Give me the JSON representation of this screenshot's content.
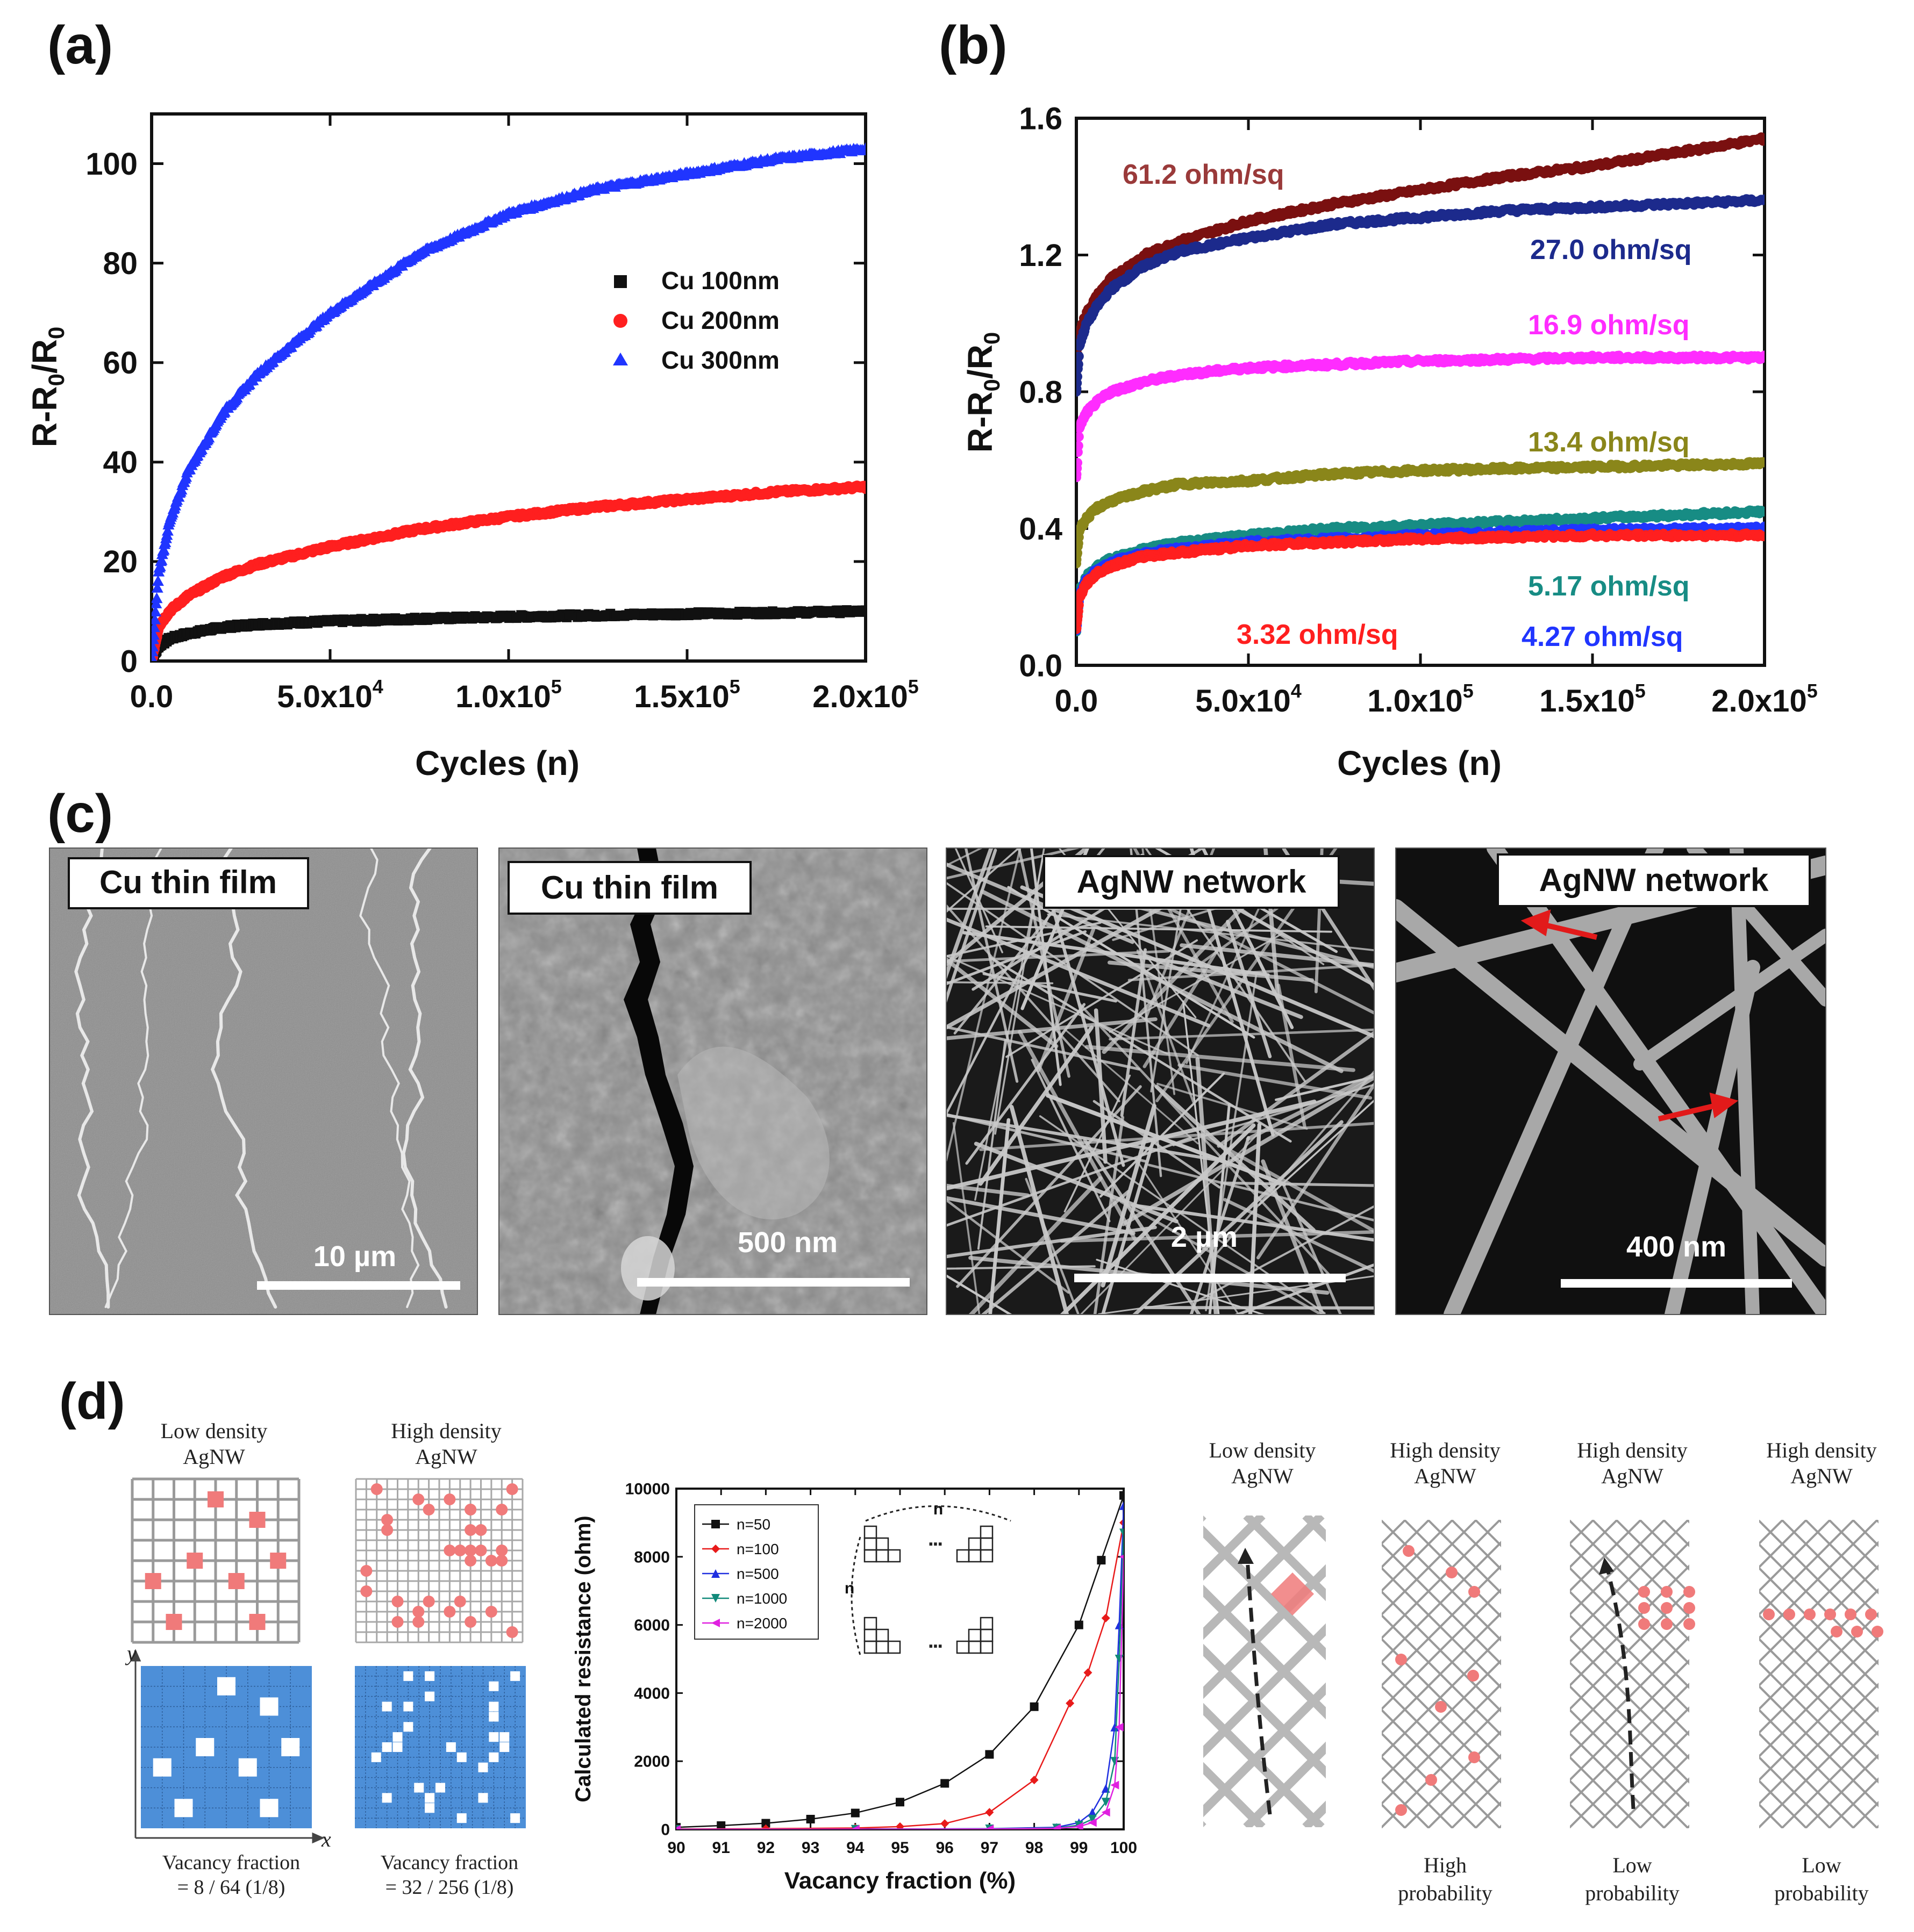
{
  "panels": {
    "a": "(a)",
    "b": "(b)",
    "c": "(c)",
    "d": "(d)"
  },
  "colors": {
    "black": "#111111",
    "red": "#ff1f1f",
    "blue": "#2035ff",
    "darkred": "#7a1010",
    "navy": "#1c2a8c",
    "magenta": "#ff2cff",
    "olive": "#8a861a",
    "teal": "#178c84",
    "sem_gray": "#8a8a8a",
    "grid_blue": "#4d8fd8",
    "vacancy_red": "#f07a7a"
  },
  "chart_data": [
    {
      "id": "a",
      "type": "scatter",
      "xlabel": "Cycles (n)",
      "ylabel": "R-R0/R0",
      "xlim": [
        0,
        200000
      ],
      "ylim": [
        0,
        110
      ],
      "xticks": [
        "0.0",
        "5.0x10",
        "1.0x10",
        "1.5x10",
        "2.0x10"
      ],
      "xtick_exp": [
        "",
        "4",
        "5",
        "5",
        "5"
      ],
      "xtick_values": [
        0,
        50000,
        100000,
        150000,
        200000
      ],
      "yticks": [
        "0",
        "20",
        "40",
        "60",
        "80",
        "100"
      ],
      "ytick_values": [
        0,
        20,
        40,
        60,
        80,
        100
      ],
      "legend": [
        "Cu 100nm",
        "Cu 200nm",
        "Cu 300nm"
      ],
      "legend_position": "right",
      "series": [
        {
          "name": "Cu 100nm",
          "marker": "square",
          "color": "#111111",
          "x": [
            0,
            2000,
            5000,
            10000,
            20000,
            30000,
            50000,
            75000,
            100000,
            125000,
            150000,
            175000,
            200000
          ],
          "y": [
            0,
            3,
            4.5,
            5.5,
            6.8,
            7.4,
            8.0,
            8.5,
            8.9,
            9.2,
            9.5,
            9.7,
            10
          ]
        },
        {
          "name": "Cu 200nm",
          "marker": "circle",
          "color": "#ff1f1f",
          "x": [
            0,
            2000,
            5000,
            10000,
            20000,
            30000,
            50000,
            75000,
            100000,
            125000,
            150000,
            175000,
            200000
          ],
          "y": [
            0,
            7,
            10,
            13,
            17,
            19.5,
            23,
            26.5,
            29,
            31,
            32.5,
            34,
            35
          ]
        },
        {
          "name": "Cu 300nm",
          "marker": "triangle",
          "color": "#2035ff",
          "x": [
            0,
            2000,
            5000,
            10000,
            20000,
            30000,
            50000,
            75000,
            100000,
            125000,
            150000,
            175000,
            200000
          ],
          "y": [
            0,
            18,
            28,
            38,
            50,
            58,
            70,
            82,
            90,
            95,
            98,
            101,
            103
          ]
        }
      ]
    },
    {
      "id": "b",
      "type": "scatter",
      "xlabel": "Cycles (n)",
      "ylabel": "R-R0/R0",
      "xlim": [
        0,
        200000
      ],
      "ylim": [
        0,
        1.6
      ],
      "xticks": [
        "0.0",
        "5.0x10",
        "1.0x10",
        "1.5x10",
        "2.0x10"
      ],
      "xtick_exp": [
        "",
        "4",
        "5",
        "5",
        "5"
      ],
      "xtick_values": [
        0,
        50000,
        100000,
        150000,
        200000
      ],
      "yticks": [
        "0.0",
        "0.4",
        "0.8",
        "1.2",
        "1.6"
      ],
      "ytick_values": [
        0,
        0.4,
        0.8,
        1.2,
        1.6
      ],
      "series": [
        {
          "name": "61.2 ohm/sq",
          "color": "#7a1010",
          "x": [
            0,
            1000,
            3000,
            6000,
            10000,
            20000,
            30000,
            50000,
            75000,
            100000,
            125000,
            150000,
            175000,
            200000
          ],
          "y": [
            0.85,
            0.98,
            1.03,
            1.08,
            1.13,
            1.2,
            1.24,
            1.3,
            1.35,
            1.39,
            1.43,
            1.46,
            1.5,
            1.54
          ]
        },
        {
          "name": "27.0 ohm/sq",
          "color": "#1c2a8c",
          "x": [
            0,
            1000,
            3000,
            6000,
            10000,
            20000,
            30000,
            50000,
            75000,
            100000,
            125000,
            150000,
            175000,
            200000
          ],
          "y": [
            0.8,
            0.94,
            1.0,
            1.05,
            1.1,
            1.17,
            1.21,
            1.25,
            1.29,
            1.31,
            1.33,
            1.34,
            1.35,
            1.36
          ]
        },
        {
          "name": "16.9 ohm/sq",
          "color": "#ff2cff",
          "x": [
            0,
            1000,
            3000,
            6000,
            10000,
            20000,
            30000,
            50000,
            75000,
            100000,
            125000,
            150000,
            175000,
            200000
          ],
          "y": [
            0.55,
            0.7,
            0.74,
            0.77,
            0.8,
            0.83,
            0.85,
            0.87,
            0.88,
            0.89,
            0.895,
            0.9,
            0.9,
            0.9
          ]
        },
        {
          "name": "13.4 ohm/sq",
          "color": "#8a861a",
          "x": [
            0,
            1000,
            3000,
            6000,
            10000,
            20000,
            30000,
            50000,
            75000,
            100000,
            125000,
            150000,
            175000,
            200000
          ],
          "y": [
            0.3,
            0.4,
            0.43,
            0.46,
            0.48,
            0.51,
            0.53,
            0.54,
            0.56,
            0.57,
            0.575,
            0.58,
            0.585,
            0.59
          ]
        },
        {
          "name": "5.17 ohm/sq",
          "color": "#178c84",
          "x": [
            0,
            1000,
            3000,
            6000,
            10000,
            20000,
            30000,
            50000,
            75000,
            100000,
            125000,
            150000,
            175000,
            200000
          ],
          "y": [
            0.1,
            0.22,
            0.26,
            0.29,
            0.31,
            0.34,
            0.36,
            0.38,
            0.4,
            0.41,
            0.42,
            0.43,
            0.44,
            0.45
          ]
        },
        {
          "name": "4.27 ohm/sq",
          "color": "#2035ff",
          "x": [
            0,
            1000,
            3000,
            6000,
            10000,
            20000,
            30000,
            50000,
            75000,
            100000,
            125000,
            150000,
            175000,
            200000
          ],
          "y": [
            0.1,
            0.21,
            0.25,
            0.28,
            0.3,
            0.33,
            0.34,
            0.36,
            0.37,
            0.38,
            0.39,
            0.395,
            0.4,
            0.4
          ]
        },
        {
          "name": "3.32 ohm/sq",
          "color": "#ff1f1f",
          "x": [
            0,
            1000,
            3000,
            6000,
            10000,
            20000,
            30000,
            50000,
            75000,
            100000,
            125000,
            150000,
            175000,
            200000
          ],
          "y": [
            0.1,
            0.2,
            0.24,
            0.27,
            0.29,
            0.32,
            0.33,
            0.35,
            0.36,
            0.37,
            0.375,
            0.38,
            0.38,
            0.38
          ]
        }
      ]
    },
    {
      "id": "d-resistance",
      "type": "line",
      "xlabel": "Vacancy fraction (%)",
      "ylabel": "Calculated resistance (ohm)",
      "xlim": [
        90,
        100
      ],
      "ylim": [
        0,
        10000
      ],
      "xticks": [
        "90",
        "91",
        "92",
        "93",
        "94",
        "95",
        "96",
        "97",
        "98",
        "99",
        "100"
      ],
      "xtick_values": [
        90,
        91,
        92,
        93,
        94,
        95,
        96,
        97,
        98,
        99,
        100
      ],
      "yticks": [
        "0",
        "2000",
        "4000",
        "6000",
        "8000",
        "10000"
      ],
      "ytick_values": [
        0,
        2000,
        4000,
        6000,
        8000,
        10000
      ],
      "legend": [
        "n=50",
        "n=100",
        "n=500",
        "n=1000",
        "n=2000"
      ],
      "legend_position": "top-left",
      "inset_label": "n",
      "series": [
        {
          "name": "n=50",
          "marker": "square",
          "color": "#111111",
          "x": [
            90,
            91,
            92,
            93,
            94,
            95,
            96,
            97,
            98,
            99,
            99.5,
            100
          ],
          "y": [
            60,
            110,
            180,
            300,
            480,
            800,
            1350,
            2200,
            3600,
            6000,
            7900,
            9800
          ]
        },
        {
          "name": "n=100",
          "marker": "circle",
          "color": "#e81a1a",
          "x": [
            90,
            92,
            94,
            95,
            96,
            97,
            98,
            98.8,
            99.2,
            99.6,
            100
          ],
          "y": [
            10,
            20,
            40,
            80,
            170,
            500,
            1450,
            3700,
            4600,
            6200,
            9000
          ]
        },
        {
          "name": "n=500",
          "marker": "triangle",
          "color": "#1f2fe0",
          "x": [
            90,
            94,
            97,
            98.5,
            99,
            99.3,
            99.6,
            99.8,
            99.9,
            100
          ],
          "y": [
            0,
            5,
            20,
            60,
            200,
            500,
            1200,
            3000,
            6000,
            9500
          ]
        },
        {
          "name": "n=1000",
          "marker": "triangle-down",
          "color": "#118a7a",
          "x": [
            90,
            94,
            97,
            98.5,
            99,
            99.3,
            99.6,
            99.8,
            99.9,
            100
          ],
          "y": [
            0,
            4,
            15,
            40,
            120,
            300,
            800,
            2000,
            5000,
            8700
          ]
        },
        {
          "name": "n=2000",
          "marker": "triangle-left",
          "color": "#e020e0",
          "x": [
            90,
            94,
            97,
            98.5,
            99,
            99.3,
            99.6,
            99.8,
            99.9,
            100
          ],
          "y": [
            0,
            3,
            10,
            30,
            80,
            200,
            500,
            1300,
            3000,
            8000
          ]
        }
      ]
    }
  ],
  "annotations_b": [
    "61.2 ohm/sq",
    "27.0 ohm/sq",
    "16.9 ohm/sq",
    "13.4 ohm/sq",
    "5.17 ohm/sq",
    "3.32 ohm/sq",
    "4.27 ohm/sq"
  ],
  "sem": [
    {
      "label": "Cu thin film",
      "scale": "10 µm"
    },
    {
      "label": "Cu thin film",
      "scale": "500 nm"
    },
    {
      "label": "AgNW network",
      "scale": "2 µm"
    },
    {
      "label": "AgNW network",
      "scale": "400 nm"
    }
  ],
  "d_left": {
    "low_title_1": "Low density",
    "low_title_2": "AgNW",
    "high_title_1": "High density",
    "high_title_2": "AgNW",
    "axis_y": "y",
    "axis_x": "x",
    "low_vf_1": "Vacancy fraction",
    "low_vf_2": "= 8 / 64 (1/8)",
    "high_vf_1": "Vacancy fraction",
    "high_vf_2": "= 32 / 256 (1/8)"
  },
  "d_right": [
    {
      "title_1": "Low density",
      "title_2": "AgNW",
      "caption_1": "",
      "caption_2": ""
    },
    {
      "title_1": "High density",
      "title_2": "AgNW",
      "caption_1": "High",
      "caption_2": "probability"
    },
    {
      "title_1": "High density",
      "title_2": "AgNW",
      "caption_1": "Low",
      "caption_2": "probability"
    },
    {
      "title_1": "High density",
      "title_2": "AgNW",
      "caption_1": "Low",
      "caption_2": "probability"
    }
  ]
}
